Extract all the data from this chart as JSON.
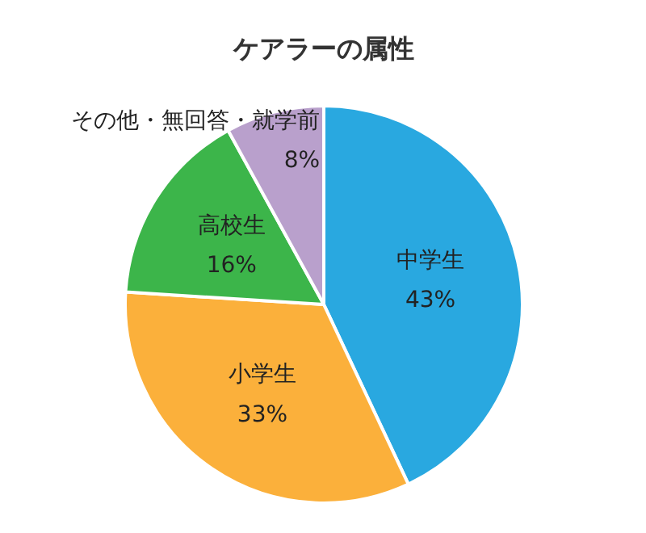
{
  "chart_data": {
    "type": "pie",
    "title": "ケアラーの属性",
    "categories": [
      "中学生",
      "小学生",
      "高校生",
      "その他・無回答・就学前"
    ],
    "values": [
      43,
      33,
      16,
      8
    ],
    "value_labels": [
      "43%",
      "33%",
      "16%",
      "8%"
    ],
    "colors": [
      "#29a8e0",
      "#fbb03b",
      "#3cb54a",
      "#b9a0cc"
    ]
  }
}
